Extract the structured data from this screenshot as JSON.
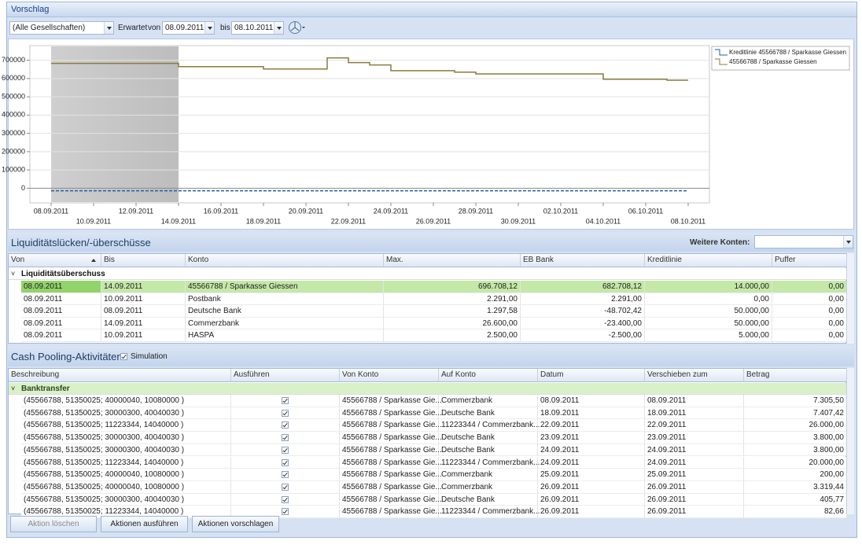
{
  "panel_title": "Vorschlag",
  "toolbar": {
    "company": "(Alle Gesellschaften)",
    "expected_label": "Erwartet",
    "from_label": "von",
    "from": "08.09.2011",
    "to_label": "bis",
    "to": "08.10.2011"
  },
  "chart": {
    "type": "line",
    "step": true,
    "x": [
      "08.09.2011",
      "14.09.2011",
      "18.09.2011",
      "21.09.2011",
      "22.09.2011",
      "23.09.2011",
      "24.09.2011",
      "27.09.2011",
      "28.09.2011",
      "04.10.2011",
      "07.10.2011",
      "08.10.2011"
    ],
    "series": [
      {
        "name": "Kreditlinie 45566788 / Sparkasse Giessen",
        "color": "#1f5fa8",
        "dashed": true,
        "values": [
          -14000,
          -14000,
          -14000,
          -14000,
          -14000,
          -14000,
          -14000,
          -14000,
          -14000,
          -14000,
          -14000,
          -14000
        ]
      },
      {
        "name": "45566788 / Sparkasse Giessen",
        "color": "#8c7a3c",
        "dashed": false,
        "values": [
          682708,
          665000,
          652000,
          713000,
          687000,
          674000,
          643000,
          635000,
          625000,
          596000,
          591000,
          591000
        ]
      }
    ],
    "xlim": [
      "07.09.2011",
      "09.10.2011"
    ],
    "xticks": [
      "08.09.2011",
      "10.09.2011",
      "12.09.2011",
      "14.09.2011",
      "16.09.2011",
      "18.09.2011",
      "20.09.2011",
      "22.09.2011",
      "24.09.2011",
      "26.09.2011",
      "28.09.2011",
      "30.09.2011",
      "02.10.2011",
      "04.10.2011",
      "06.10.2011",
      "08.10.2011"
    ],
    "ylim": [
      -80000,
      780000
    ],
    "yticks": [
      0,
      100000,
      200000,
      300000,
      400000,
      500000,
      600000,
      700000
    ],
    "grid": true
  },
  "liquidity": {
    "title": "Liquiditätslücken/-überschüsse",
    "more_accounts_label": "Weitere Konten:",
    "columns": [
      "Von",
      "Bis",
      "Konto",
      "Max.",
      "EB Bank",
      "Kreditlinie",
      "Puffer"
    ],
    "group": "Liquiditätsüberschuss",
    "rows": [
      [
        "08.09.2011",
        "14.09.2011",
        "45566788 / Sparkasse Giessen",
        "696.708,12",
        "682.708,12",
        "14.000,00",
        "0,00"
      ],
      [
        "08.09.2011",
        "10.09.2011",
        "Postbank",
        "2.291,00",
        "2.291,00",
        "0,00",
        "0,00"
      ],
      [
        "08.09.2011",
        "08.09.2011",
        "Deutsche Bank",
        "1.297,58",
        "-48.702,42",
        "50.000,00",
        "0,00"
      ],
      [
        "08.09.2011",
        "14.09.2011",
        "Commerzbank",
        "26.600,00",
        "-23.400,00",
        "50.000,00",
        "0,00"
      ],
      [
        "08.09.2011",
        "10.09.2011",
        "HASPA",
        "2.500,00",
        "-2.500,00",
        "5.000,00",
        "0,00"
      ]
    ]
  },
  "cash_pooling": {
    "title": "Cash Pooling-Aktivitäten",
    "simulation_label": "Simulation",
    "simulation": true,
    "columns": [
      "Beschreibung",
      "Ausführen",
      "Von Konto",
      "Auf Konto",
      "Datum",
      "Verschieben zum",
      "Betrag"
    ],
    "group": "Banktransfer",
    "rows": [
      [
        "(45566788, 51350025; 40000040, 10080000 )",
        true,
        "45566788 / Sparkasse Gie...",
        "Commerzbank",
        "08.09.2011",
        "08.09.2011",
        "7.305,50"
      ],
      [
        "(45566788, 51350025; 30000300, 40040030 )",
        true,
        "45566788 / Sparkasse Gie...",
        "Deutsche Bank",
        "18.09.2011",
        "18.09.2011",
        "7.407,42"
      ],
      [
        "(45566788, 51350025; 11223344, 14040000 )",
        true,
        "45566788 / Sparkasse Gie...",
        "11223344 / Commerzbank...",
        "22.09.2011",
        "22.09.2011",
        "26.000,00"
      ],
      [
        "(45566788, 51350025; 30000300, 40040030 )",
        true,
        "45566788 / Sparkasse Gie...",
        "Deutsche Bank",
        "23.09.2011",
        "23.09.2011",
        "3.800,00"
      ],
      [
        "(45566788, 51350025; 30000300, 40040030 )",
        true,
        "45566788 / Sparkasse Gie...",
        "Deutsche Bank",
        "24.09.2011",
        "24.09.2011",
        "3.800,00"
      ],
      [
        "(45566788, 51350025; 11223344, 14040000 )",
        true,
        "45566788 / Sparkasse Gie...",
        "11223344 / Commerzbank...",
        "24.09.2011",
        "24.09.2011",
        "20.000,00"
      ],
      [
        "(45566788, 51350025; 40000040, 10080000 )",
        true,
        "45566788 / Sparkasse Gie...",
        "Commerzbank",
        "25.09.2011",
        "25.09.2011",
        "200,00"
      ],
      [
        "(45566788, 51350025; 40000040, 10080000 )",
        true,
        "45566788 / Sparkasse Gie...",
        "Commerzbank",
        "26.09.2011",
        "26.09.2011",
        "3.319,44"
      ],
      [
        "(45566788, 51350025; 30000300, 40040030 )",
        true,
        "45566788 / Sparkasse Gie...",
        "Deutsche Bank",
        "26.09.2011",
        "26.09.2011",
        "405,77"
      ],
      [
        "(45566788, 51350025; 11223344, 14040000 )",
        true,
        "45566788 / Sparkasse Gie...",
        "11223344 / Commerzbank...",
        "26.09.2011",
        "26.09.2011",
        "82,66"
      ]
    ]
  },
  "buttons": [
    "Aktion löschen",
    "Aktionen ausführen",
    "Aktionen vorschlagen"
  ]
}
